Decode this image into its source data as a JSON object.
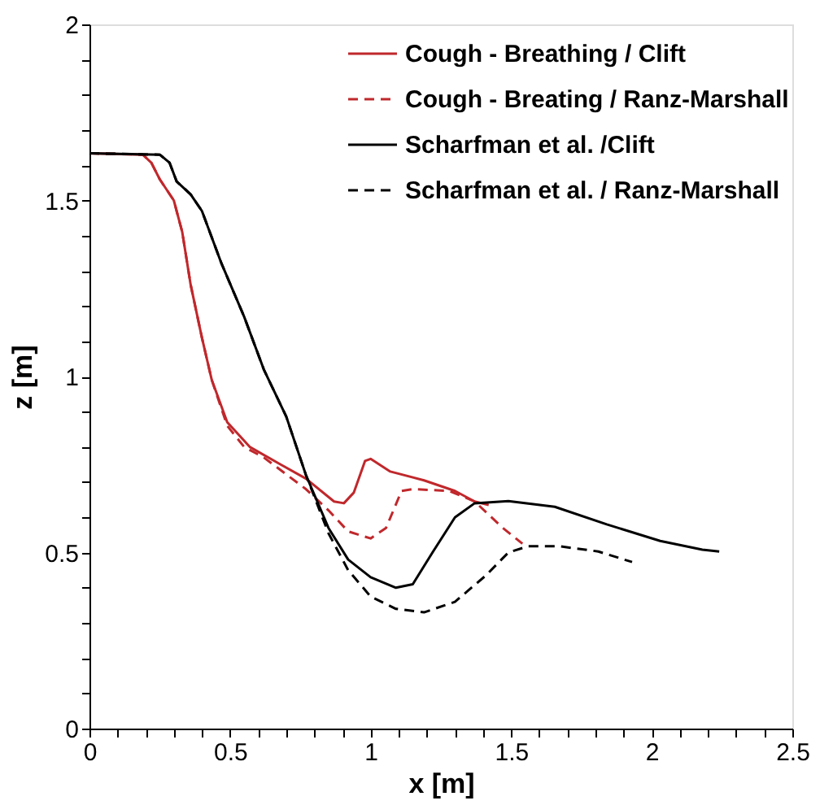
{
  "chart_data": {
    "type": "line",
    "xlabel": "x [m]",
    "ylabel": "z [m]",
    "xlim": [
      0,
      2.5
    ],
    "ylim": [
      0,
      2
    ],
    "xticks": [
      0,
      {
        "value": 0.1,
        "label": null
      },
      {
        "value": 0.2,
        "label": null
      },
      {
        "value": 0.3,
        "label": null
      },
      {
        "value": 0.4,
        "label": null
      },
      0.5,
      {
        "value": 0.6,
        "label": null
      },
      {
        "value": 0.7,
        "label": null
      },
      {
        "value": 0.8,
        "label": null
      },
      {
        "value": 0.9,
        "label": null
      },
      1,
      {
        "value": 1.1,
        "label": null
      },
      {
        "value": 1.2,
        "label": null
      },
      {
        "value": 1.3,
        "label": null
      },
      {
        "value": 1.4,
        "label": null
      },
      1.5,
      {
        "value": 1.6,
        "label": null
      },
      {
        "value": 1.7,
        "label": null
      },
      {
        "value": 1.8,
        "label": null
      },
      {
        "value": 1.9,
        "label": null
      },
      2,
      {
        "value": 2.1,
        "label": null
      },
      {
        "value": 2.2,
        "label": null
      },
      {
        "value": 2.3,
        "label": null
      },
      {
        "value": 2.4,
        "label": null
      },
      2.5
    ],
    "yticks": [
      0,
      {
        "value": 0.1,
        "label": null
      },
      {
        "value": 0.2,
        "label": null
      },
      {
        "value": 0.3,
        "label": null
      },
      {
        "value": 0.4,
        "label": null
      },
      0.5,
      {
        "value": 0.6,
        "label": null
      },
      {
        "value": 0.7,
        "label": null
      },
      {
        "value": 0.8,
        "label": null
      },
      {
        "value": 0.9,
        "label": null
      },
      1,
      {
        "value": 1.1,
        "label": null
      },
      {
        "value": 1.2,
        "label": null
      },
      {
        "value": 1.3,
        "label": null
      },
      {
        "value": 1.4,
        "label": null
      },
      1.5,
      {
        "value": 1.6,
        "label": null
      },
      {
        "value": 1.7,
        "label": null
      },
      {
        "value": 1.8,
        "label": null
      },
      {
        "value": 1.9,
        "label": null
      },
      2
    ],
    "grid": false,
    "legend": "top right",
    "marker": "none",
    "series": [
      {
        "name": "Cough - Breathing /  Clift",
        "color": "#c0282c",
        "line_style": "solid",
        "x": [
          0,
          0.19,
          0.22,
          0.25,
          0.3,
          0.33,
          0.36,
          0.4,
          0.435,
          0.49,
          0.57,
          0.68,
          0.77,
          0.87,
          0.905,
          0.94,
          0.98,
          1.0,
          1.07,
          1.19,
          1.3,
          1.37,
          1.42
        ],
        "values": [
          1.634,
          1.63,
          1.607,
          1.56,
          1.5,
          1.41,
          1.26,
          1.11,
          0.99,
          0.87,
          0.8,
          0.75,
          0.71,
          0.645,
          0.64,
          0.67,
          0.76,
          0.766,
          0.73,
          0.705,
          0.675,
          0.645,
          0.635
        ]
      },
      {
        "name": "Cough - Breating / Ranz-Marshall",
        "color": "#c0282c",
        "line_style": "dashed",
        "x": [
          0,
          0.19,
          0.22,
          0.25,
          0.3,
          0.33,
          0.36,
          0.4,
          0.435,
          0.49,
          0.55,
          0.62,
          0.77,
          0.85,
          0.92,
          1.0,
          1.055,
          1.11,
          1.15,
          1.28,
          1.37,
          1.47,
          1.54
        ],
        "values": [
          1.634,
          1.63,
          1.607,
          1.56,
          1.5,
          1.41,
          1.26,
          1.11,
          0.99,
          0.86,
          0.8,
          0.77,
          0.68,
          0.62,
          0.56,
          0.54,
          0.57,
          0.675,
          0.68,
          0.675,
          0.645,
          0.57,
          0.525
        ]
      },
      {
        "name": "Scharfman et al. /Clift",
        "color": "#000000",
        "line_style": "solid",
        "x": [
          0,
          0.25,
          0.285,
          0.31,
          0.36,
          0.4,
          0.47,
          0.55,
          0.62,
          0.7,
          0.77,
          0.85,
          0.92,
          1.0,
          1.09,
          1.15,
          1.22,
          1.3,
          1.37,
          1.49,
          1.655,
          1.84,
          2.03,
          2.18,
          2.24
        ],
        "values": [
          1.634,
          1.63,
          1.607,
          1.554,
          1.517,
          1.47,
          1.32,
          1.17,
          1.02,
          0.886,
          0.72,
          0.57,
          0.48,
          0.43,
          0.4,
          0.41,
          0.5,
          0.6,
          0.64,
          0.646,
          0.63,
          0.58,
          0.533,
          0.508,
          0.503
        ]
      },
      {
        "name": "Scharfman et al. / Ranz-Marshall",
        "color": "#000000",
        "line_style": "dashed",
        "x": [
          0,
          0.25,
          0.285,
          0.31,
          0.36,
          0.4,
          0.47,
          0.55,
          0.62,
          0.7,
          0.77,
          0.85,
          0.92,
          1.0,
          1.09,
          1.19,
          1.3,
          1.41,
          1.49,
          1.56,
          1.67,
          1.81,
          1.93
        ],
        "values": [
          1.634,
          1.63,
          1.607,
          1.554,
          1.517,
          1.47,
          1.32,
          1.17,
          1.02,
          0.886,
          0.72,
          0.555,
          0.45,
          0.375,
          0.34,
          0.33,
          0.36,
          0.435,
          0.5,
          0.518,
          0.518,
          0.503,
          0.473
        ]
      }
    ]
  }
}
